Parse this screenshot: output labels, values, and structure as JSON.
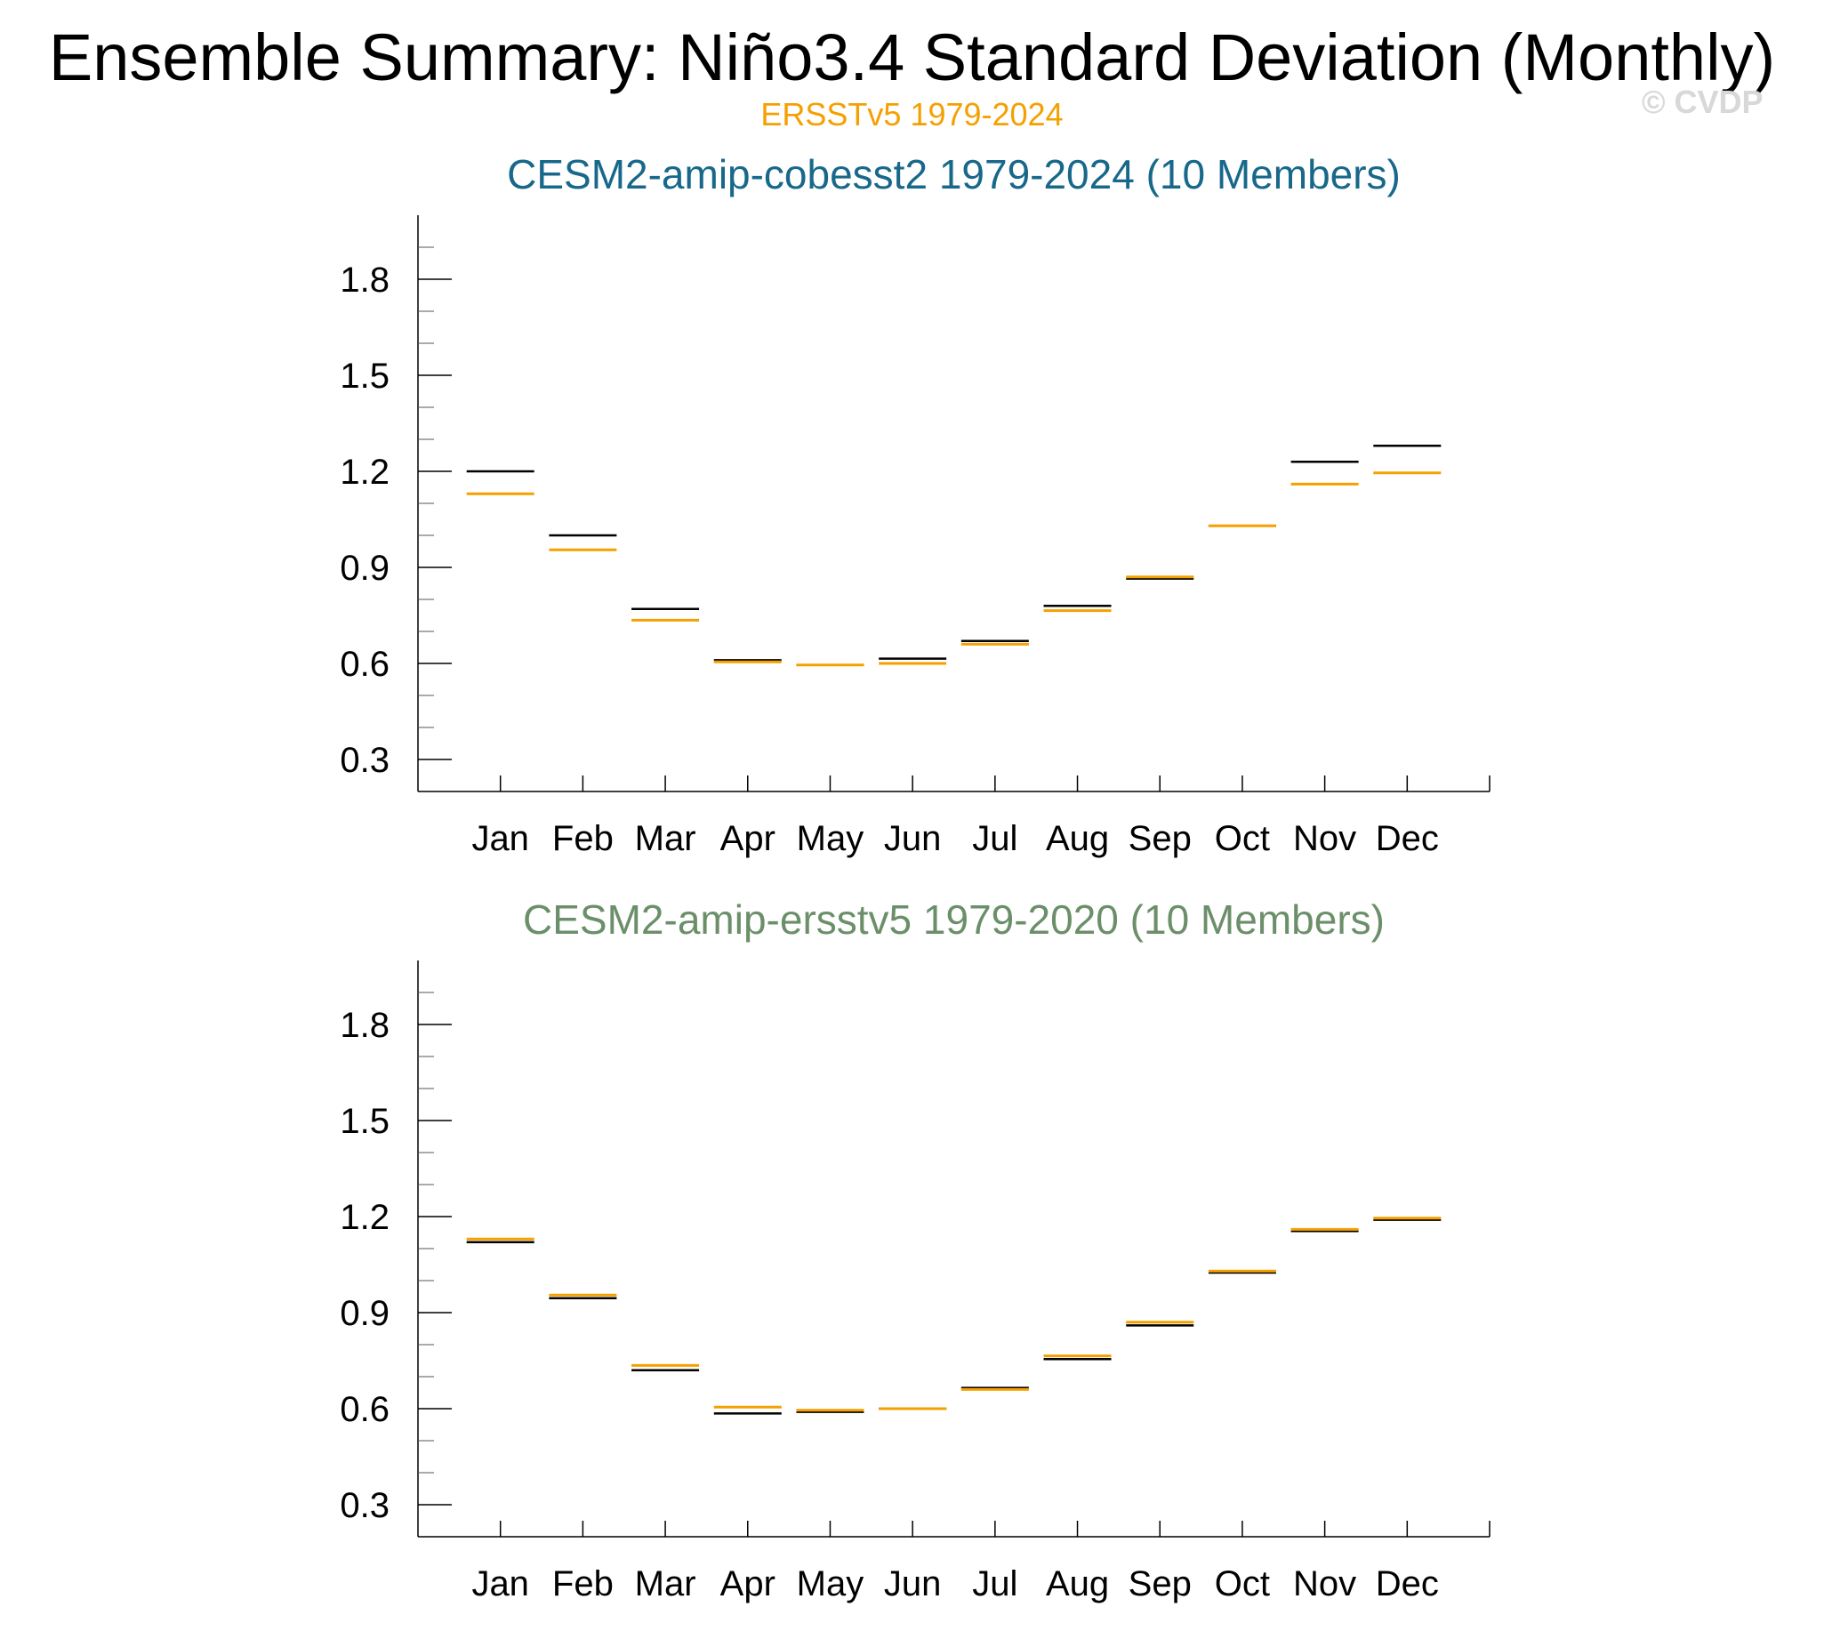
{
  "title": "Ensemble Summary: Niño3.4 Standard Deviation (Monthly)",
  "subtitle": "ERSSTv5 1979-2024",
  "watermark": "© CVDP",
  "colors": {
    "observation": "#f5a000",
    "ensemble_line": "#000000",
    "panel1_title": "#17688a",
    "panel2_title": "#6b8f69",
    "axis": "#000000"
  },
  "chart_data": [
    {
      "type": "box",
      "title": "CESM2-amip-cobesst2 1979-2024 (10 Members)",
      "title_color": "#17688a",
      "categories": [
        "Jan",
        "Feb",
        "Mar",
        "Apr",
        "May",
        "Jun",
        "Jul",
        "Aug",
        "Sep",
        "Oct",
        "Nov",
        "Dec"
      ],
      "ylim": [
        0.2,
        2.0
      ],
      "yticks": [
        0.3,
        0.6,
        0.9,
        1.2,
        1.5,
        1.8
      ],
      "ytick_labels": [
        "0.3",
        "0.6",
        "0.9",
        "1.2",
        "1.5",
        "1.8"
      ],
      "series": [
        {
          "role": "ensemble",
          "values": [
            1.2,
            1.0,
            0.77,
            0.61,
            0.595,
            0.615,
            0.67,
            0.78,
            0.865,
            1.03,
            1.23,
            1.28
          ]
        },
        {
          "role": "observation",
          "values": [
            1.13,
            0.955,
            0.735,
            0.605,
            0.595,
            0.6,
            0.66,
            0.765,
            0.87,
            1.03,
            1.16,
            1.195
          ]
        }
      ]
    },
    {
      "type": "box",
      "title": "CESM2-amip-ersstv5 1979-2020 (10 Members)",
      "title_color": "#6b8f69",
      "categories": [
        "Jan",
        "Feb",
        "Mar",
        "Apr",
        "May",
        "Jun",
        "Jul",
        "Aug",
        "Sep",
        "Oct",
        "Nov",
        "Dec"
      ],
      "ylim": [
        0.2,
        2.0
      ],
      "yticks": [
        0.3,
        0.6,
        0.9,
        1.2,
        1.5,
        1.8
      ],
      "ytick_labels": [
        "0.3",
        "0.6",
        "0.9",
        "1.2",
        "1.5",
        "1.8"
      ],
      "series": [
        {
          "role": "ensemble",
          "values": [
            1.12,
            0.945,
            0.72,
            0.585,
            0.59,
            0.6,
            0.665,
            0.755,
            0.86,
            1.025,
            1.155,
            1.19
          ]
        },
        {
          "role": "observation",
          "values": [
            1.13,
            0.955,
            0.735,
            0.605,
            0.595,
            0.6,
            0.66,
            0.765,
            0.87,
            1.03,
            1.16,
            1.195
          ]
        }
      ]
    }
  ]
}
